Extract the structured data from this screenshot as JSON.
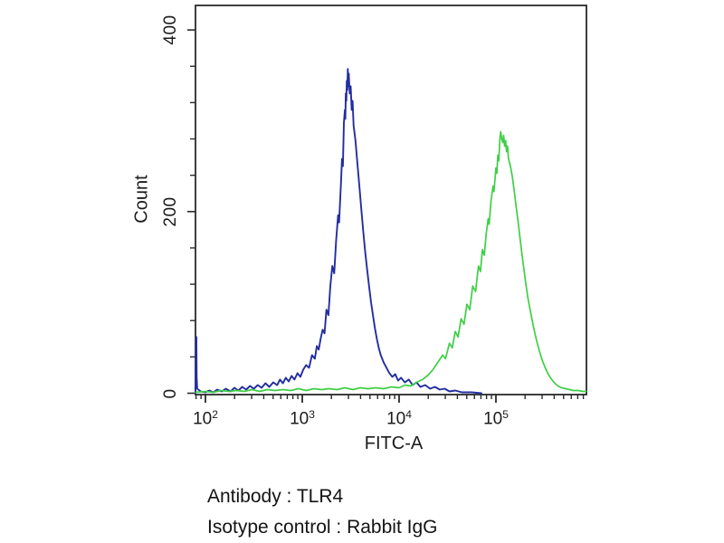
{
  "figure": {
    "background": "#ffffff",
    "frame_color": "#2a2a2a"
  },
  "caption": {
    "line1": "Antibody : TLR4",
    "line2": "Isotype control : Rabbit IgG"
  },
  "chart_data": {
    "type": "line",
    "subtype": "flow-cytometry-histogram-overlay",
    "title": "",
    "xlabel": "FITC-A",
    "ylabel": "Count",
    "x_scale": "log10",
    "x_log_range": [
      1.897,
      5.935
    ],
    "x_tick_base": "10",
    "x_major_tick_exponents": [
      2,
      3,
      4,
      5
    ],
    "x_minor_ticks": "2-9 per decade",
    "ylim": [
      0,
      427
    ],
    "y_major_ticks": [
      0,
      200,
      400
    ],
    "y_minor_tick_step": 40,
    "grid": false,
    "legend": "none",
    "series": [
      {
        "name": "blue histogram (left / negative peak)",
        "color": "#232e9e",
        "peak": {
          "x_approx": 2700,
          "count_max": 357
        },
        "points": [
          [
            1.897,
            0
          ],
          [
            1.9,
            25
          ],
          [
            1.902,
            60
          ],
          [
            1.906,
            62
          ],
          [
            1.909,
            18
          ],
          [
            1.915,
            5
          ],
          [
            1.95,
            2
          ],
          [
            2.0,
            1
          ],
          [
            2.04,
            3
          ],
          [
            2.08,
            1
          ],
          [
            2.12,
            4
          ],
          [
            2.17,
            2
          ],
          [
            2.21,
            5
          ],
          [
            2.26,
            2
          ],
          [
            2.3,
            6
          ],
          [
            2.34,
            3
          ],
          [
            2.38,
            7
          ],
          [
            2.42,
            4
          ],
          [
            2.46,
            8
          ],
          [
            2.5,
            5
          ],
          [
            2.54,
            9
          ],
          [
            2.58,
            6
          ],
          [
            2.62,
            11
          ],
          [
            2.66,
            7
          ],
          [
            2.7,
            12
          ],
          [
            2.74,
            9
          ],
          [
            2.77,
            15
          ],
          [
            2.8,
            11
          ],
          [
            2.83,
            17
          ],
          [
            2.86,
            13
          ],
          [
            2.89,
            19
          ],
          [
            2.92,
            15
          ],
          [
            2.95,
            22
          ],
          [
            2.98,
            18
          ],
          [
            3.01,
            26
          ],
          [
            3.04,
            31
          ],
          [
            3.07,
            28
          ],
          [
            3.1,
            42
          ],
          [
            3.13,
            38
          ],
          [
            3.15,
            52
          ],
          [
            3.17,
            48
          ],
          [
            3.19,
            60
          ],
          [
            3.21,
            70
          ],
          [
            3.23,
            66
          ],
          [
            3.25,
            92
          ],
          [
            3.27,
            86
          ],
          [
            3.29,
            118
          ],
          [
            3.31,
            140
          ],
          [
            3.33,
            132
          ],
          [
            3.35,
            168
          ],
          [
            3.37,
            196
          ],
          [
            3.38,
            188
          ],
          [
            3.4,
            232
          ],
          [
            3.41,
            258
          ],
          [
            3.42,
            250
          ],
          [
            3.43,
            298
          ],
          [
            3.44,
            312
          ],
          [
            3.445,
            302
          ],
          [
            3.45,
            330
          ],
          [
            3.455,
            322
          ],
          [
            3.46,
            344
          ],
          [
            3.465,
            334
          ],
          [
            3.47,
            357
          ],
          [
            3.475,
            338
          ],
          [
            3.48,
            352
          ],
          [
            3.49,
            330
          ],
          [
            3.5,
            338
          ],
          [
            3.51,
            312
          ],
          [
            3.52,
            322
          ],
          [
            3.53,
            295
          ],
          [
            3.55,
            278
          ],
          [
            3.57,
            252
          ],
          [
            3.59,
            228
          ],
          [
            3.61,
            202
          ],
          [
            3.63,
            178
          ],
          [
            3.65,
            156
          ],
          [
            3.67,
            136
          ],
          [
            3.69,
            118
          ],
          [
            3.71,
            100
          ],
          [
            3.73,
            86
          ],
          [
            3.75,
            72
          ],
          [
            3.77,
            60
          ],
          [
            3.79,
            50
          ],
          [
            3.81,
            42
          ],
          [
            3.84,
            34
          ],
          [
            3.87,
            28
          ],
          [
            3.9,
            22
          ],
          [
            3.93,
            18
          ],
          [
            3.96,
            21
          ],
          [
            3.99,
            14
          ],
          [
            4.02,
            17
          ],
          [
            4.06,
            12
          ],
          [
            4.1,
            15
          ],
          [
            4.14,
            9
          ],
          [
            4.18,
            12
          ],
          [
            4.22,
            7
          ],
          [
            4.27,
            9
          ],
          [
            4.32,
            5
          ],
          [
            4.37,
            7
          ],
          [
            4.42,
            4
          ],
          [
            4.47,
            5
          ],
          [
            4.52,
            2
          ],
          [
            4.58,
            3
          ],
          [
            4.65,
            1
          ],
          [
            4.75,
            1
          ],
          [
            4.85,
            0
          ]
        ]
      },
      {
        "name": "green histogram (right / positive peak)",
        "color": "#3ecf46",
        "peak": {
          "x_approx": 110000,
          "count_max": 288
        },
        "points": [
          [
            1.9,
            1
          ],
          [
            2.0,
            2
          ],
          [
            2.08,
            1
          ],
          [
            2.16,
            3
          ],
          [
            2.24,
            2
          ],
          [
            2.32,
            3
          ],
          [
            2.4,
            2
          ],
          [
            2.48,
            4
          ],
          [
            2.56,
            2
          ],
          [
            2.64,
            4
          ],
          [
            2.72,
            3
          ],
          [
            2.8,
            4
          ],
          [
            2.88,
            3
          ],
          [
            2.96,
            5
          ],
          [
            3.04,
            3
          ],
          [
            3.12,
            5
          ],
          [
            3.2,
            4
          ],
          [
            3.28,
            5
          ],
          [
            3.36,
            4
          ],
          [
            3.44,
            6
          ],
          [
            3.52,
            4
          ],
          [
            3.6,
            6
          ],
          [
            3.68,
            5
          ],
          [
            3.76,
            6
          ],
          [
            3.84,
            5
          ],
          [
            3.92,
            7
          ],
          [
            4.0,
            6
          ],
          [
            4.06,
            9
          ],
          [
            4.12,
            8
          ],
          [
            4.18,
            12
          ],
          [
            4.24,
            15
          ],
          [
            4.3,
            20
          ],
          [
            4.35,
            26
          ],
          [
            4.4,
            34
          ],
          [
            4.45,
            42
          ],
          [
            4.48,
            38
          ],
          [
            4.52,
            55
          ],
          [
            4.55,
            50
          ],
          [
            4.58,
            68
          ],
          [
            4.61,
            62
          ],
          [
            4.64,
            82
          ],
          [
            4.67,
            76
          ],
          [
            4.7,
            98
          ],
          [
            4.73,
            92
          ],
          [
            4.76,
            118
          ],
          [
            4.79,
            112
          ],
          [
            4.82,
            140
          ],
          [
            4.84,
            134
          ],
          [
            4.86,
            158
          ],
          [
            4.88,
            152
          ],
          [
            4.9,
            176
          ],
          [
            4.92,
            192
          ],
          [
            4.93,
            186
          ],
          [
            4.95,
            212
          ],
          [
            4.97,
            228
          ],
          [
            4.98,
            222
          ],
          [
            5.0,
            248
          ],
          [
            5.01,
            242
          ],
          [
            5.02,
            262
          ],
          [
            5.03,
            256
          ],
          [
            5.04,
            278
          ],
          [
            5.05,
            288
          ],
          [
            5.06,
            280
          ],
          [
            5.07,
            276
          ],
          [
            5.08,
            284
          ],
          [
            5.09,
            272
          ],
          [
            5.1,
            278
          ],
          [
            5.11,
            266
          ],
          [
            5.12,
            272
          ],
          [
            5.13,
            258
          ],
          [
            5.15,
            250
          ],
          [
            5.17,
            238
          ],
          [
            5.19,
            222
          ],
          [
            5.21,
            205
          ],
          [
            5.23,
            188
          ],
          [
            5.25,
            170
          ],
          [
            5.27,
            152
          ],
          [
            5.29,
            136
          ],
          [
            5.31,
            120
          ],
          [
            5.33,
            105
          ],
          [
            5.36,
            88
          ],
          [
            5.39,
            72
          ],
          [
            5.42,
            58
          ],
          [
            5.45,
            46
          ],
          [
            5.48,
            36
          ],
          [
            5.51,
            28
          ],
          [
            5.54,
            21
          ],
          [
            5.57,
            16
          ],
          [
            5.6,
            12
          ],
          [
            5.64,
            8
          ],
          [
            5.68,
            6
          ],
          [
            5.72,
            5
          ],
          [
            5.76,
            4
          ],
          [
            5.8,
            3
          ],
          [
            5.85,
            3
          ],
          [
            5.9,
            2
          ],
          [
            5.93,
            2
          ]
        ]
      }
    ]
  }
}
